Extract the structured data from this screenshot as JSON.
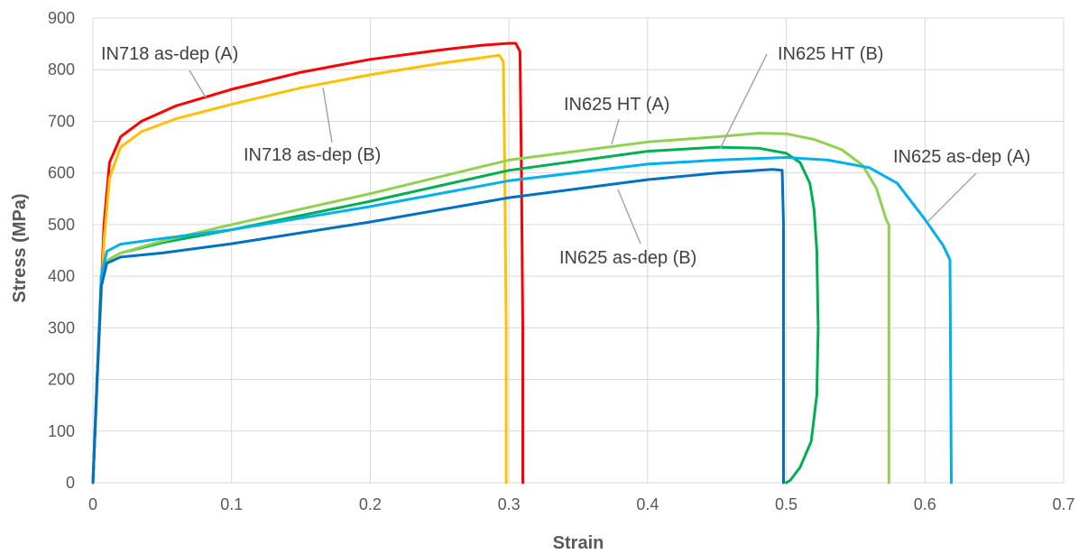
{
  "chart_data": {
    "type": "line",
    "xlabel": "Strain",
    "ylabel": "Stress (MPa)",
    "xlim": [
      0,
      0.7
    ],
    "ylim": [
      0,
      900
    ],
    "xticks": [
      "0",
      "0.1",
      "0.2",
      "0.3",
      "0.4",
      "0.5",
      "0.6",
      "0.7"
    ],
    "yticks": [
      "0",
      "100",
      "200",
      "300",
      "400",
      "500",
      "600",
      "700",
      "800",
      "900"
    ],
    "grid": "vertical and horizontal",
    "series": [
      {
        "name": "IN718 as-dep (A)",
        "color": "#ff0000",
        "points": [
          [
            0,
            0
          ],
          [
            0.004,
            250
          ],
          [
            0.008,
            500
          ],
          [
            0.012,
            620
          ],
          [
            0.02,
            670
          ],
          [
            0.035,
            700
          ],
          [
            0.06,
            730
          ],
          [
            0.1,
            762
          ],
          [
            0.15,
            795
          ],
          [
            0.2,
            820
          ],
          [
            0.25,
            838
          ],
          [
            0.28,
            847
          ],
          [
            0.3,
            851
          ],
          [
            0.305,
            851
          ],
          [
            0.308,
            835
          ],
          [
            0.309,
            600
          ],
          [
            0.31,
            300
          ],
          [
            0.31,
            0
          ]
        ]
      },
      {
        "name": "IN718 as-dep (B)",
        "color": "#ffc000",
        "points": [
          [
            0,
            0
          ],
          [
            0.004,
            250
          ],
          [
            0.008,
            470
          ],
          [
            0.012,
            590
          ],
          [
            0.02,
            650
          ],
          [
            0.035,
            680
          ],
          [
            0.06,
            705
          ],
          [
            0.1,
            733
          ],
          [
            0.15,
            765
          ],
          [
            0.2,
            790
          ],
          [
            0.25,
            812
          ],
          [
            0.28,
            823
          ],
          [
            0.29,
            827
          ],
          [
            0.293,
            828
          ],
          [
            0.296,
            815
          ],
          [
            0.297,
            600
          ],
          [
            0.298,
            300
          ],
          [
            0.298,
            0
          ]
        ]
      },
      {
        "name": "IN625 HT (A)",
        "color": "#00b050",
        "points": [
          [
            0,
            0
          ],
          [
            0.003,
            200
          ],
          [
            0.006,
            380
          ],
          [
            0.01,
            430
          ],
          [
            0.02,
            445
          ],
          [
            0.05,
            465
          ],
          [
            0.1,
            490
          ],
          [
            0.2,
            545
          ],
          [
            0.3,
            605
          ],
          [
            0.4,
            642
          ],
          [
            0.45,
            650
          ],
          [
            0.48,
            648
          ],
          [
            0.5,
            638
          ],
          [
            0.51,
            620
          ],
          [
            0.517,
            580
          ],
          [
            0.52,
            530
          ],
          [
            0.522,
            450
          ],
          [
            0.523,
            300
          ],
          [
            0.522,
            170
          ],
          [
            0.518,
            80
          ],
          [
            0.51,
            30
          ],
          [
            0.503,
            5
          ],
          [
            0.5,
            0
          ]
        ]
      },
      {
        "name": "IN625 HT (B)",
        "color": "#92d050",
        "points": [
          [
            0,
            0
          ],
          [
            0.003,
            200
          ],
          [
            0.006,
            380
          ],
          [
            0.01,
            430
          ],
          [
            0.02,
            445
          ],
          [
            0.05,
            468
          ],
          [
            0.1,
            500
          ],
          [
            0.2,
            560
          ],
          [
            0.3,
            625
          ],
          [
            0.4,
            660
          ],
          [
            0.45,
            670
          ],
          [
            0.48,
            677
          ],
          [
            0.5,
            676
          ],
          [
            0.52,
            665
          ],
          [
            0.54,
            645
          ],
          [
            0.555,
            615
          ],
          [
            0.565,
            570
          ],
          [
            0.572,
            510
          ],
          [
            0.574,
            500
          ],
          [
            0.574,
            0
          ]
        ]
      },
      {
        "name": "IN625 as-dep (A)",
        "color": "#00b0f0",
        "points": [
          [
            0,
            0
          ],
          [
            0.003,
            200
          ],
          [
            0.006,
            400
          ],
          [
            0.01,
            448
          ],
          [
            0.02,
            462
          ],
          [
            0.05,
            473
          ],
          [
            0.1,
            490
          ],
          [
            0.2,
            535
          ],
          [
            0.3,
            585
          ],
          [
            0.4,
            617
          ],
          [
            0.45,
            625
          ],
          [
            0.5,
            630
          ],
          [
            0.53,
            625
          ],
          [
            0.56,
            610
          ],
          [
            0.58,
            580
          ],
          [
            0.6,
            510
          ],
          [
            0.613,
            460
          ],
          [
            0.618,
            432
          ],
          [
            0.619,
            0
          ]
        ]
      },
      {
        "name": "IN625 as-dep (B)",
        "color": "#0070c0",
        "points": [
          [
            0,
            0
          ],
          [
            0.003,
            200
          ],
          [
            0.006,
            380
          ],
          [
            0.01,
            425
          ],
          [
            0.02,
            437
          ],
          [
            0.05,
            445
          ],
          [
            0.1,
            463
          ],
          [
            0.2,
            505
          ],
          [
            0.3,
            552
          ],
          [
            0.4,
            587
          ],
          [
            0.45,
            600
          ],
          [
            0.49,
            607
          ],
          [
            0.497,
            605
          ],
          [
            0.498,
            500
          ],
          [
            0.498,
            0
          ]
        ]
      }
    ],
    "annotations": [
      {
        "text": "IN718 as-dep (A)",
        "series": "IN718 as-dep (A)"
      },
      {
        "text": "IN718 as-dep (B)",
        "series": "IN718 as-dep (B)"
      },
      {
        "text": "IN625 HT (A)",
        "series": "IN625 HT (A)"
      },
      {
        "text": "IN625 HT (B)",
        "series": "IN625 HT (B)"
      },
      {
        "text": "IN625 as-dep (A)",
        "series": "IN625 as-dep (A)"
      },
      {
        "text": "IN625 as-dep (B)",
        "series": "IN625 as-dep (B)"
      }
    ]
  }
}
